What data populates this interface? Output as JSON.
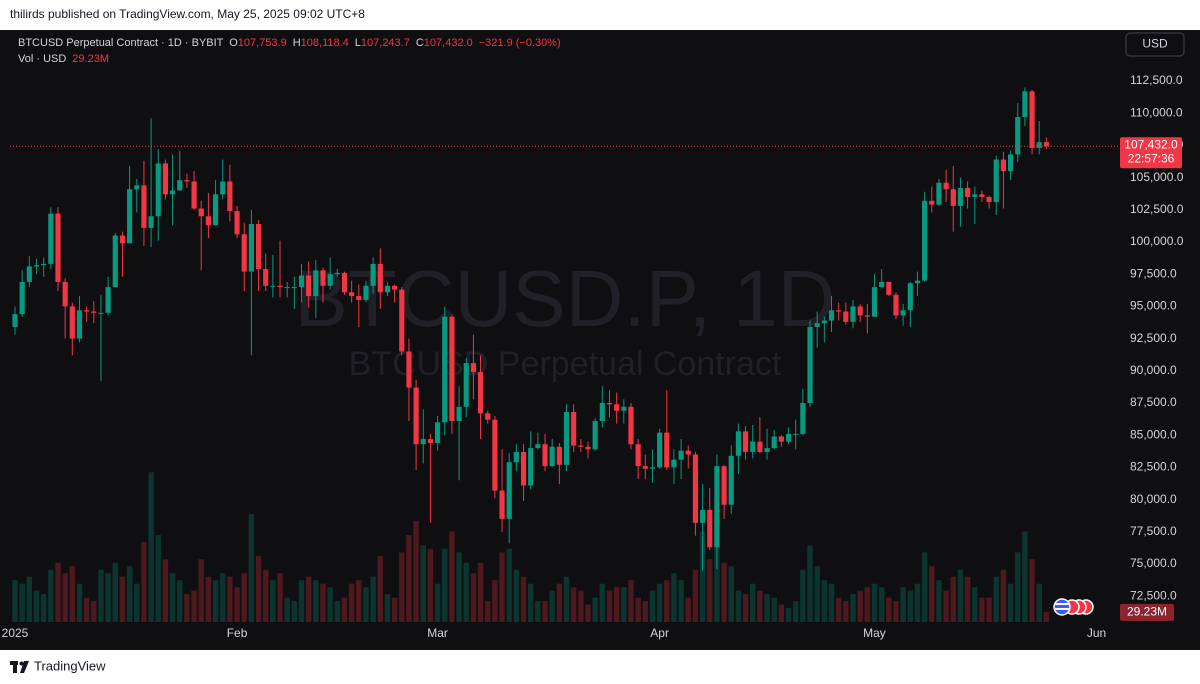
{
  "header": {
    "published": "thilirds published on TradingView.com, May 25, 2025 09:02 UTC+8"
  },
  "footer": {
    "brand": "TradingView"
  },
  "chart_data": {
    "type": "candlestick",
    "symbol": "BTCUSD Perpetual Contract · 1D · BYBIT",
    "ohlc": [
      {
        "key": "O",
        "value": "107,753.9"
      },
      {
        "key": "H",
        "value": "108,118.4"
      },
      {
        "key": "L",
        "value": "107,243.7"
      },
      {
        "key": "C",
        "value": "107,432.0"
      }
    ],
    "change": "−321.9 (−0.30%)",
    "vol_title": "Vol · USD",
    "volume_label": "29.23M",
    "currency": "USD",
    "watermark": {
      "title": "BTCUSD.P, 1D",
      "subtitle": "BTCUSD Perpetual Contract"
    },
    "last_price": {
      "value": 107432,
      "label": "107,432.0"
    },
    "countdown": "22:57:36",
    "up_color": "#089981",
    "down_color": "#f23645",
    "grid": false,
    "open": [
      93400,
      94400,
      96900,
      98100,
      98200,
      98300,
      102200,
      96900,
      95000,
      92500,
      94700,
      94600,
      94500,
      94500,
      96500,
      100500,
      99900,
      104100,
      104400,
      101100,
      102000,
      106100,
      103700,
      104000,
      104800,
      104700,
      102600,
      102000,
      101300,
      103700,
      104700,
      102400,
      100600,
      97700,
      101400,
      97900,
      96600,
      96600,
      96500,
      96500,
      96500,
      97400,
      95800,
      97800,
      96600,
      97500,
      97600,
      96100,
      95800,
      95500,
      96600,
      98300,
      96100,
      96600,
      96300,
      91500,
      88700,
      84300,
      84700,
      84400,
      86000,
      94200,
      86100,
      87200,
      90600,
      89900,
      86700,
      86200,
      80700,
      78500,
      82900,
      83700,
      81100,
      84000,
      84300,
      82600,
      84100,
      82700,
      86800,
      84200,
      84100,
      83900,
      86100,
      87500,
      87400,
      86900,
      87200,
      84300,
      82600,
      82400,
      82500,
      85200,
      82500,
      83100,
      83800,
      83500,
      78200,
      79200,
      76300,
      82600,
      79600,
      83400,
      85300,
      83700,
      84500,
      83700,
      84000,
      84900,
      84500,
      85100,
      85100,
      87500,
      93400,
      93700,
      93900,
      94700,
      94600,
      93800,
      95000,
      94300,
      94200,
      96500,
      96900,
      95900,
      94300,
      94700,
      96800,
      97000,
      103200,
      102900,
      104600,
      104100,
      102800,
      104200,
      103500,
      103700,
      103500,
      103100,
      106400,
      105500,
      106800,
      109700,
      111700,
      107300,
      107753.9
    ],
    "high": [
      95000,
      97800,
      98900,
      98700,
      98800,
      102700,
      102700,
      97200,
      95300,
      95800,
      95000,
      95400,
      95900,
      97300,
      100700,
      100800,
      105900,
      104900,
      106300,
      109600,
      107200,
      106400,
      106800,
      107100,
      105300,
      105500,
      103200,
      103800,
      104800,
      106400,
      106000,
      102800,
      101500,
      102500,
      101700,
      99100,
      99000,
      100100,
      96900,
      97300,
      98300,
      98500,
      98600,
      98000,
      98800,
      97900,
      97700,
      97000,
      96700,
      97000,
      98800,
      99500,
      96900,
      96700,
      96500,
      92500,
      89300,
      87000,
      85100,
      86500,
      95000,
      94400,
      88800,
      91000,
      92800,
      91200,
      86900,
      86500,
      83900,
      83600,
      84300,
      84300,
      85300,
      85200,
      85100,
      84700,
      84400,
      87400,
      87400,
      84700,
      84500,
      86300,
      88800,
      88500,
      88300,
      87800,
      87500,
      84700,
      83500,
      83900,
      85500,
      88500,
      83900,
      84700,
      84200,
      83700,
      81200,
      80900,
      83500,
      82700,
      84200,
      85900,
      85700,
      85800,
      86400,
      85500,
      85400,
      85000,
      85600,
      86200,
      88600,
      93900,
      94600,
      94200,
      95800,
      95300,
      95300,
      95500,
      95200,
      95200,
      97500,
      97900,
      96900,
      96100,
      95200,
      96900,
      97700,
      103900,
      104300,
      104900,
      105600,
      105900,
      105000,
      104700,
      104300,
      104000,
      103600,
      106700,
      107000,
      107100,
      110800,
      112000,
      111800,
      109400,
      108118.4
    ],
    "low": [
      92800,
      94200,
      96500,
      97500,
      97300,
      97900,
      96200,
      92500,
      91200,
      92200,
      93800,
      93700,
      89200,
      94300,
      96500,
      97300,
      99900,
      102300,
      99700,
      99600,
      100100,
      103300,
      101300,
      104000,
      104200,
      102500,
      97800,
      100300,
      101300,
      103300,
      101600,
      100300,
      96200,
      91200,
      96200,
      96200,
      95700,
      95700,
      95700,
      94800,
      95300,
      94900,
      94100,
      95300,
      96300,
      97300,
      95900,
      95300,
      93400,
      95300,
      96000,
      94800,
      95800,
      95300,
      91200,
      86100,
      82300,
      82800,
      78200,
      83800,
      85000,
      85100,
      81500,
      86400,
      87800,
      84700,
      85900,
      80100,
      77500,
      76600,
      82200,
      79900,
      80800,
      83900,
      82200,
      82500,
      81200,
      82200,
      83700,
      83700,
      83200,
      83800,
      85600,
      86400,
      85900,
      85900,
      83900,
      81600,
      81600,
      81300,
      82400,
      82300,
      81200,
      81600,
      82400,
      77200,
      74500,
      76100,
      74600,
      78500,
      78900,
      82000,
      83100,
      83200,
      83600,
      83100,
      83900,
      84100,
      84300,
      83900,
      85000,
      87200,
      91800,
      92200,
      93000,
      93900,
      93600,
      93300,
      93800,
      92900,
      94200,
      96400,
      95800,
      94000,
      93500,
      93400,
      95800,
      96900,
      102300,
      102800,
      103100,
      100800,
      101200,
      102600,
      101400,
      103100,
      102600,
      102100,
      102600,
      104800,
      106200,
      109000,
      106800,
      106800,
      107243.7
    ],
    "close": [
      94400,
      96900,
      98100,
      98200,
      98300,
      102200,
      96900,
      95000,
      92500,
      94700,
      94600,
      94500,
      94500,
      96500,
      100500,
      99900,
      104100,
      104400,
      101100,
      102000,
      106100,
      103700,
      104000,
      104800,
      104700,
      102600,
      102000,
      101300,
      103700,
      104700,
      102400,
      100600,
      97700,
      101400,
      97900,
      96600,
      96600,
      96500,
      96500,
      96500,
      97400,
      95800,
      97800,
      96600,
      97500,
      97600,
      96100,
      95800,
      95500,
      96600,
      98300,
      96100,
      96600,
      96300,
      91500,
      88700,
      84300,
      84700,
      84400,
      86000,
      94200,
      86100,
      87200,
      90600,
      89900,
      86700,
      86200,
      80700,
      78500,
      82900,
      83700,
      81100,
      84000,
      84300,
      82600,
      84100,
      82700,
      86800,
      84200,
      84100,
      83900,
      86100,
      87500,
      87400,
      86900,
      87200,
      84300,
      82600,
      82400,
      82500,
      85200,
      82500,
      83100,
      83800,
      83500,
      78200,
      79200,
      76300,
      82600,
      79600,
      83400,
      85300,
      83700,
      84500,
      83700,
      84000,
      84900,
      84500,
      85100,
      85100,
      87500,
      93400,
      93700,
      93900,
      94700,
      94600,
      93800,
      95000,
      94300,
      94200,
      96500,
      96900,
      95900,
      94300,
      94700,
      96800,
      97000,
      103200,
      102900,
      104600,
      104100,
      102800,
      104200,
      103500,
      103700,
      103500,
      103100,
      106400,
      105500,
      106800,
      109700,
      111700,
      107300,
      107753.9,
      107432
    ],
    "volume": [
      120,
      110,
      130,
      90,
      80,
      150,
      170,
      140,
      160,
      110,
      70,
      60,
      150,
      140,
      170,
      130,
      160,
      110,
      230,
      430,
      250,
      180,
      140,
      120,
      80,
      90,
      180,
      130,
      120,
      140,
      130,
      100,
      140,
      310,
      190,
      150,
      120,
      140,
      70,
      60,
      120,
      130,
      120,
      110,
      100,
      60,
      70,
      110,
      120,
      100,
      130,
      190,
      80,
      70,
      200,
      250,
      290,
      220,
      210,
      110,
      210,
      260,
      200,
      170,
      140,
      170,
      60,
      120,
      200,
      210,
      150,
      130,
      110,
      60,
      60,
      90,
      110,
      130,
      100,
      90,
      50,
      70,
      110,
      90,
      100,
      100,
      120,
      70,
      60,
      90,
      110,
      120,
      140,
      120,
      70,
      150,
      260,
      180,
      240,
      170,
      160,
      90,
      80,
      110,
      90,
      80,
      70,
      50,
      40,
      60,
      150,
      220,
      160,
      120,
      110,
      70,
      60,
      80,
      90,
      100,
      110,
      100,
      70,
      60,
      100,
      90,
      110,
      200,
      160,
      120,
      90,
      130,
      150,
      130,
      100,
      70,
      70,
      130,
      150,
      110,
      200,
      260,
      180,
      110,
      29.23
    ],
    "vol_ylim": [
      0,
      1700
    ],
    "ylim": [
      70496,
      116460
    ],
    "yticks": [
      {
        "value": 72500,
        "label": "72,500.0"
      },
      {
        "value": 75000,
        "label": "75,000.0"
      },
      {
        "value": 77500,
        "label": "77,500.0"
      },
      {
        "value": 80000,
        "label": "80,000.0"
      },
      {
        "value": 82500,
        "label": "82,500.0"
      },
      {
        "value": 85000,
        "label": "85,000.0"
      },
      {
        "value": 87500,
        "label": "87,500.0"
      },
      {
        "value": 90000,
        "label": "90,000.0"
      },
      {
        "value": 92500,
        "label": "92,500.0"
      },
      {
        "value": 95000,
        "label": "95,000.0"
      },
      {
        "value": 97500,
        "label": "97,500.0"
      },
      {
        "value": 100000,
        "label": "100,000.0"
      },
      {
        "value": 102500,
        "label": "102,500.0"
      },
      {
        "value": 105000,
        "label": "105,000.0"
      },
      {
        "value": 107500,
        "label": "107,500.0"
      },
      {
        "value": 110000,
        "label": "110,000.0"
      },
      {
        "value": 112500,
        "label": "112,500.0"
      }
    ],
    "xlim": [
      -0.7,
      154
    ],
    "xticks": [
      {
        "value": 0,
        "label": "2025"
      },
      {
        "value": 31,
        "label": "Feb"
      },
      {
        "value": 59,
        "label": "Mar"
      },
      {
        "value": 90,
        "label": "Apr"
      },
      {
        "value": 120,
        "label": "May"
      },
      {
        "value": 151,
        "label": "Jun"
      }
    ]
  }
}
